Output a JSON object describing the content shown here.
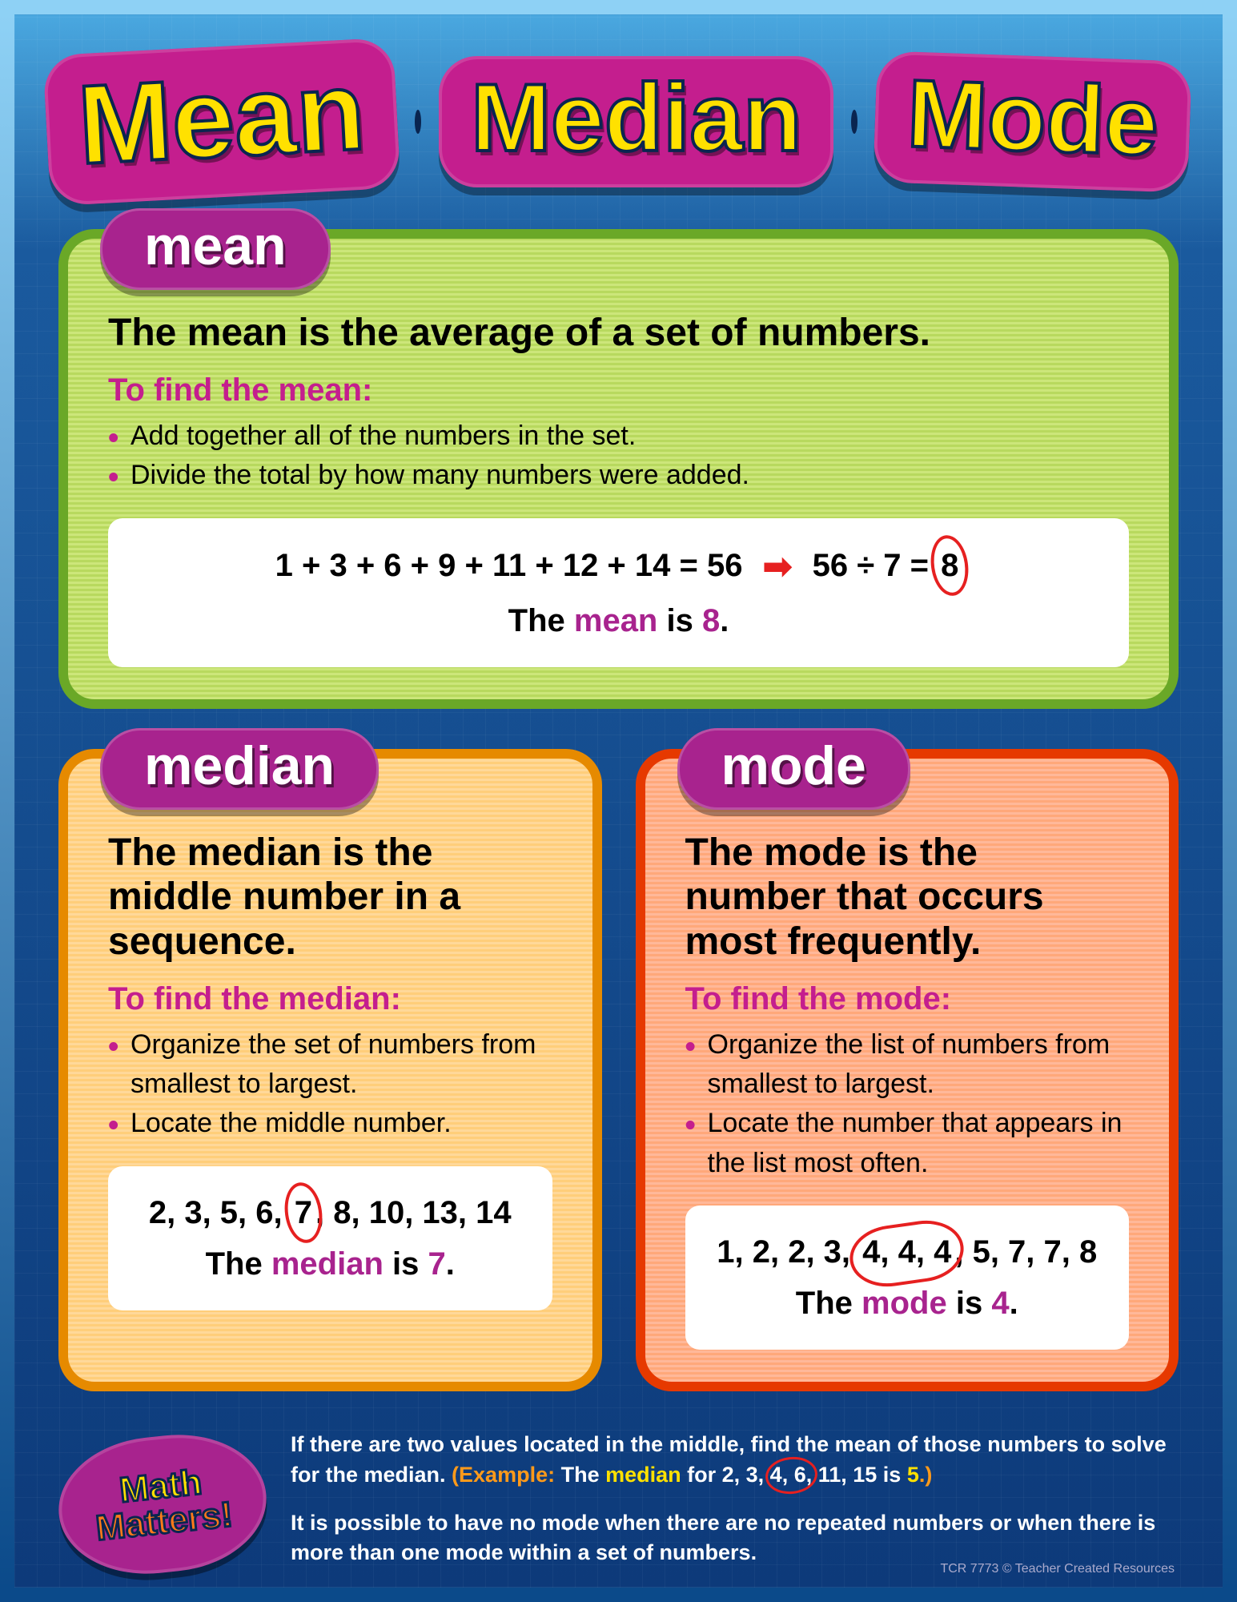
{
  "title": {
    "w1": "Mean",
    "w2": "Median",
    "w3": "Mode"
  },
  "colors": {
    "magenta": "#c41e8e",
    "yellow": "#ffe100",
    "navy": "#0a2550",
    "red": "#e62020",
    "purple": "#a8238e",
    "mean_bg": "#cce67a",
    "mean_border": "#6aa827",
    "median_bg": "#ffd899",
    "median_border": "#e68a00",
    "mode_bg": "#ffb899",
    "mode_border": "#e63900",
    "poster_top": "#4aa8e0",
    "poster_bottom": "#0d3a7a"
  },
  "cards": {
    "mean": {
      "pill": "mean",
      "def": "The mean is the average of a set of numbers.",
      "find": "To find the mean:",
      "steps": [
        "Add together all of the numbers in the set.",
        "Divide the total by how many numbers were added."
      ],
      "eq_left": "1 + 3 + 6 + 9 + 11 + 12 + 14 = 56",
      "eq_div": "56 ÷ 7 =",
      "eq_ans": "8",
      "answer_pre": "The ",
      "answer_word": "mean",
      "answer_post": " is ",
      "answer_val": "8",
      "answer_end": "."
    },
    "median": {
      "pill": "median",
      "def": "The median is the middle number in a sequence.",
      "find": "To find the median:",
      "steps": [
        "Organize the set of numbers from smallest to largest.",
        "Locate the middle number."
      ],
      "seq_pre": "2, 3, 5, 6,",
      "seq_circ": "7",
      "seq_post": ", 8, 10, 13, 14",
      "answer_pre": "The ",
      "answer_word": "median",
      "answer_post": " is ",
      "answer_val": "7",
      "answer_end": "."
    },
    "mode": {
      "pill": "mode",
      "def": "The mode is the number that occurs most frequently.",
      "find": "To find the mode:",
      "steps": [
        "Organize the list of numbers from smallest to largest.",
        "Locate the number that appears in the list most often."
      ],
      "seq_pre": "1, 2, 2, 3,",
      "seq_circ": "4, 4, 4",
      "seq_post": ", 5, 7, 7, 8",
      "answer_pre": "The ",
      "answer_word": "mode",
      "answer_post": " is ",
      "answer_val": "4",
      "answer_end": "."
    }
  },
  "badge": {
    "l1": "Math",
    "l2": "Matters!"
  },
  "notes": {
    "p1a": "If there are two values located in the middle, find the mean of those numbers to solve for the median. ",
    "p1b": "(Example:",
    "p1c": " The ",
    "p1d": "median",
    "p1e": " for 2, 3, ",
    "p1f": "4, 6,",
    "p1g": " 11, 15 is ",
    "p1h": "5",
    "p1i": ".)",
    "p2": "It is possible to have no mode when there are no repeated numbers or when there is more than one mode within a set of numbers."
  },
  "copyright": "TCR 7773  © Teacher Created Resources"
}
